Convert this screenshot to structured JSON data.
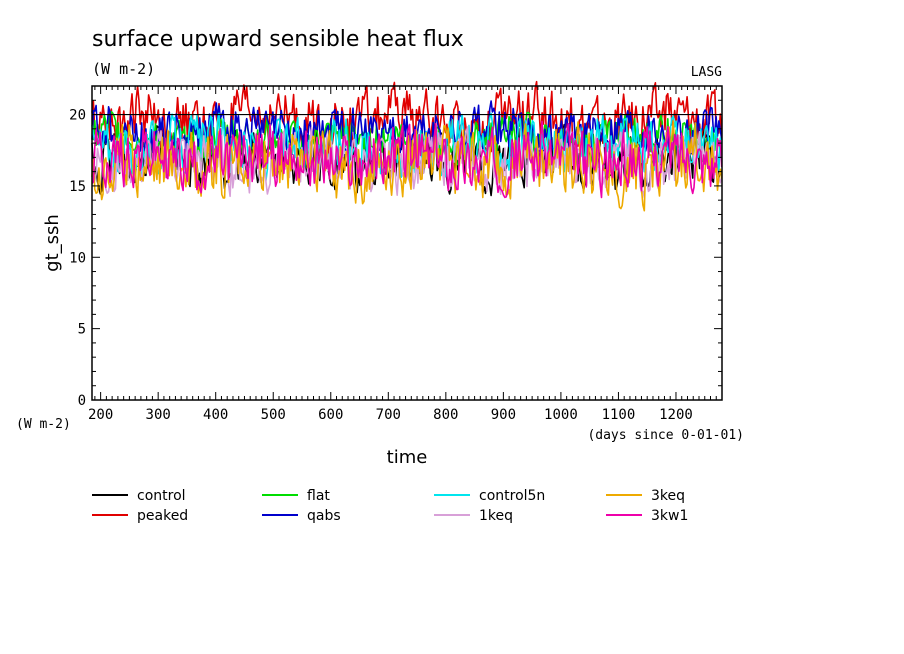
{
  "chart_data": {
    "type": "line",
    "title": "surface upward sensible heat flux",
    "subtitle": "(W m-2)",
    "corner_label": "LASG",
    "ylabel": "gt_ssh",
    "y_unit": "(W m-2)",
    "xlabel": "time",
    "x_unit": "(days since 0-01-01)",
    "xlim": [
      185,
      1280
    ],
    "ylim": [
      0,
      22
    ],
    "xticks": [
      200,
      300,
      400,
      500,
      600,
      700,
      800,
      900,
      1000,
      1100,
      1200
    ],
    "yticks": [
      0,
      5,
      10,
      15,
      20
    ],
    "reference_line_y": 20,
    "grid": false,
    "legend_position": "bottom",
    "series": [
      {
        "name": "control",
        "color": "#000000",
        "mean": 16.8,
        "amp": 1.2,
        "min": 14.3,
        "max": 19.6
      },
      {
        "name": "peaked",
        "color": "#e00000",
        "mean": 19.6,
        "amp": 1.2,
        "min": 17.2,
        "max": 22.4
      },
      {
        "name": "flat",
        "color": "#00dd00",
        "mean": 18.3,
        "amp": 0.9,
        "min": 16.5,
        "max": 20.2
      },
      {
        "name": "qabs",
        "color": "#0000cc",
        "mean": 18.9,
        "amp": 1.0,
        "min": 16.8,
        "max": 21.2
      },
      {
        "name": "control5n",
        "color": "#00e5ee",
        "mean": 17.8,
        "amp": 1.2,
        "min": 14.8,
        "max": 20.2
      },
      {
        "name": "1keq",
        "color": "#d8a0d8",
        "mean": 16.7,
        "amp": 1.2,
        "min": 13.2,
        "max": 19.5
      },
      {
        "name": "3keq",
        "color": "#eeaa00",
        "mean": 16.6,
        "amp": 1.5,
        "min": 12.7,
        "max": 21.4
      },
      {
        "name": "3kw1",
        "color": "#ee00aa",
        "mean": 16.9,
        "amp": 1.3,
        "min": 13.7,
        "max": 19.6
      }
    ]
  }
}
